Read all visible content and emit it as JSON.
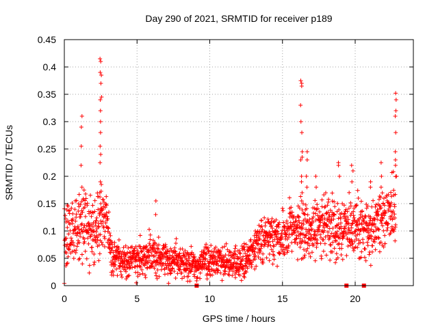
{
  "chart_data": {
    "type": "scatter",
    "title": "Day 290 of 2021, SRMTID for receiver p189",
    "xlabel": "GPS time / hours",
    "ylabel": "SRMTID / TECUs",
    "xlim": [
      0,
      24
    ],
    "ylim": [
      0,
      0.45
    ],
    "xticks": [
      0,
      5,
      10,
      15,
      20
    ],
    "yticks": [
      0,
      0.05,
      0.1,
      0.15,
      0.2,
      0.25,
      0.3,
      0.35,
      0.4,
      0.45
    ],
    "xtick_labels": [
      "0",
      "5",
      "10",
      "15",
      "20"
    ],
    "ytick_labels": [
      "0",
      "0.05",
      "0.1",
      "0.15",
      "0.2",
      "0.25",
      "0.3",
      "0.35",
      "0.4",
      "0.45"
    ],
    "grid": true,
    "marker": "plus",
    "color": "#ff0000",
    "series": [
      {
        "name": "SRMTID",
        "envelope": [
          {
            "x": 0.0,
            "mean": 0.09,
            "spread": 0.04
          },
          {
            "x": 0.5,
            "mean": 0.095,
            "spread": 0.04
          },
          {
            "x": 1.0,
            "mean": 0.11,
            "spread": 0.045
          },
          {
            "x": 1.5,
            "mean": 0.11,
            "spread": 0.04
          },
          {
            "x": 2.0,
            "mean": 0.1,
            "spread": 0.04
          },
          {
            "x": 2.5,
            "mean": 0.12,
            "spread": 0.045
          },
          {
            "x": 2.9,
            "mean": 0.13,
            "spread": 0.03
          },
          {
            "x": 3.2,
            "mean": 0.055,
            "spread": 0.02
          },
          {
            "x": 4.0,
            "mean": 0.045,
            "spread": 0.02
          },
          {
            "x": 5.0,
            "mean": 0.045,
            "spread": 0.02
          },
          {
            "x": 6.0,
            "mean": 0.06,
            "spread": 0.025
          },
          {
            "x": 7.0,
            "mean": 0.05,
            "spread": 0.022
          },
          {
            "x": 8.0,
            "mean": 0.042,
            "spread": 0.02
          },
          {
            "x": 9.0,
            "mean": 0.038,
            "spread": 0.02
          },
          {
            "x": 10.0,
            "mean": 0.045,
            "spread": 0.022
          },
          {
            "x": 11.0,
            "mean": 0.04,
            "spread": 0.02
          },
          {
            "x": 12.0,
            "mean": 0.042,
            "spread": 0.02
          },
          {
            "x": 13.0,
            "mean": 0.06,
            "spread": 0.025
          },
          {
            "x": 14.0,
            "mean": 0.09,
            "spread": 0.03
          },
          {
            "x": 15.0,
            "mean": 0.09,
            "spread": 0.03
          },
          {
            "x": 16.0,
            "mean": 0.11,
            "spread": 0.035
          },
          {
            "x": 17.0,
            "mean": 0.1,
            "spread": 0.035
          },
          {
            "x": 18.0,
            "mean": 0.11,
            "spread": 0.035
          },
          {
            "x": 19.0,
            "mean": 0.1,
            "spread": 0.04
          },
          {
            "x": 20.0,
            "mean": 0.11,
            "spread": 0.04
          },
          {
            "x": 21.0,
            "mean": 0.1,
            "spread": 0.035
          },
          {
            "x": 22.0,
            "mean": 0.12,
            "spread": 0.035
          },
          {
            "x": 22.8,
            "mean": 0.14,
            "spread": 0.04
          }
        ],
        "bursts": [
          {
            "x": 1.2,
            "values": [
              0.31,
              0.29,
              0.255,
              0.22,
              0.18
            ]
          },
          {
            "x": 2.5,
            "values": [
              0.415,
              0.41,
              0.39,
              0.385,
              0.37,
              0.345,
              0.34,
              0.32,
              0.3,
              0.28,
              0.255,
              0.24,
              0.225,
              0.19,
              0.185,
              0.17,
              0.15
            ]
          },
          {
            "x": 6.3,
            "values": [
              0.155,
              0.13
            ]
          },
          {
            "x": 16.3,
            "values": [
              0.375,
              0.37,
              0.365,
              0.33,
              0.3,
              0.28,
              0.245,
              0.235,
              0.23,
              0.2,
              0.19,
              0.17,
              0.155
            ]
          },
          {
            "x": 16.7,
            "values": [
              0.245,
              0.23,
              0.2,
              0.18
            ]
          },
          {
            "x": 17.3,
            "values": [
              0.2,
              0.18
            ]
          },
          {
            "x": 18.9,
            "values": [
              0.225,
              0.22,
              0.2
            ]
          },
          {
            "x": 19.8,
            "values": [
              0.22,
              0.21,
              0.19
            ]
          },
          {
            "x": 21.1,
            "values": [
              0.19,
              0.18
            ]
          },
          {
            "x": 21.8,
            "values": [
              0.225,
              0.2,
              0.18
            ]
          },
          {
            "x": 22.8,
            "values": [
              0.352,
              0.34,
              0.32,
              0.31,
              0.28,
              0.245,
              0.23,
              0.22,
              0.2
            ]
          }
        ],
        "zero_markers": [
          9.1,
          19.4,
          20.6
        ]
      }
    ]
  }
}
